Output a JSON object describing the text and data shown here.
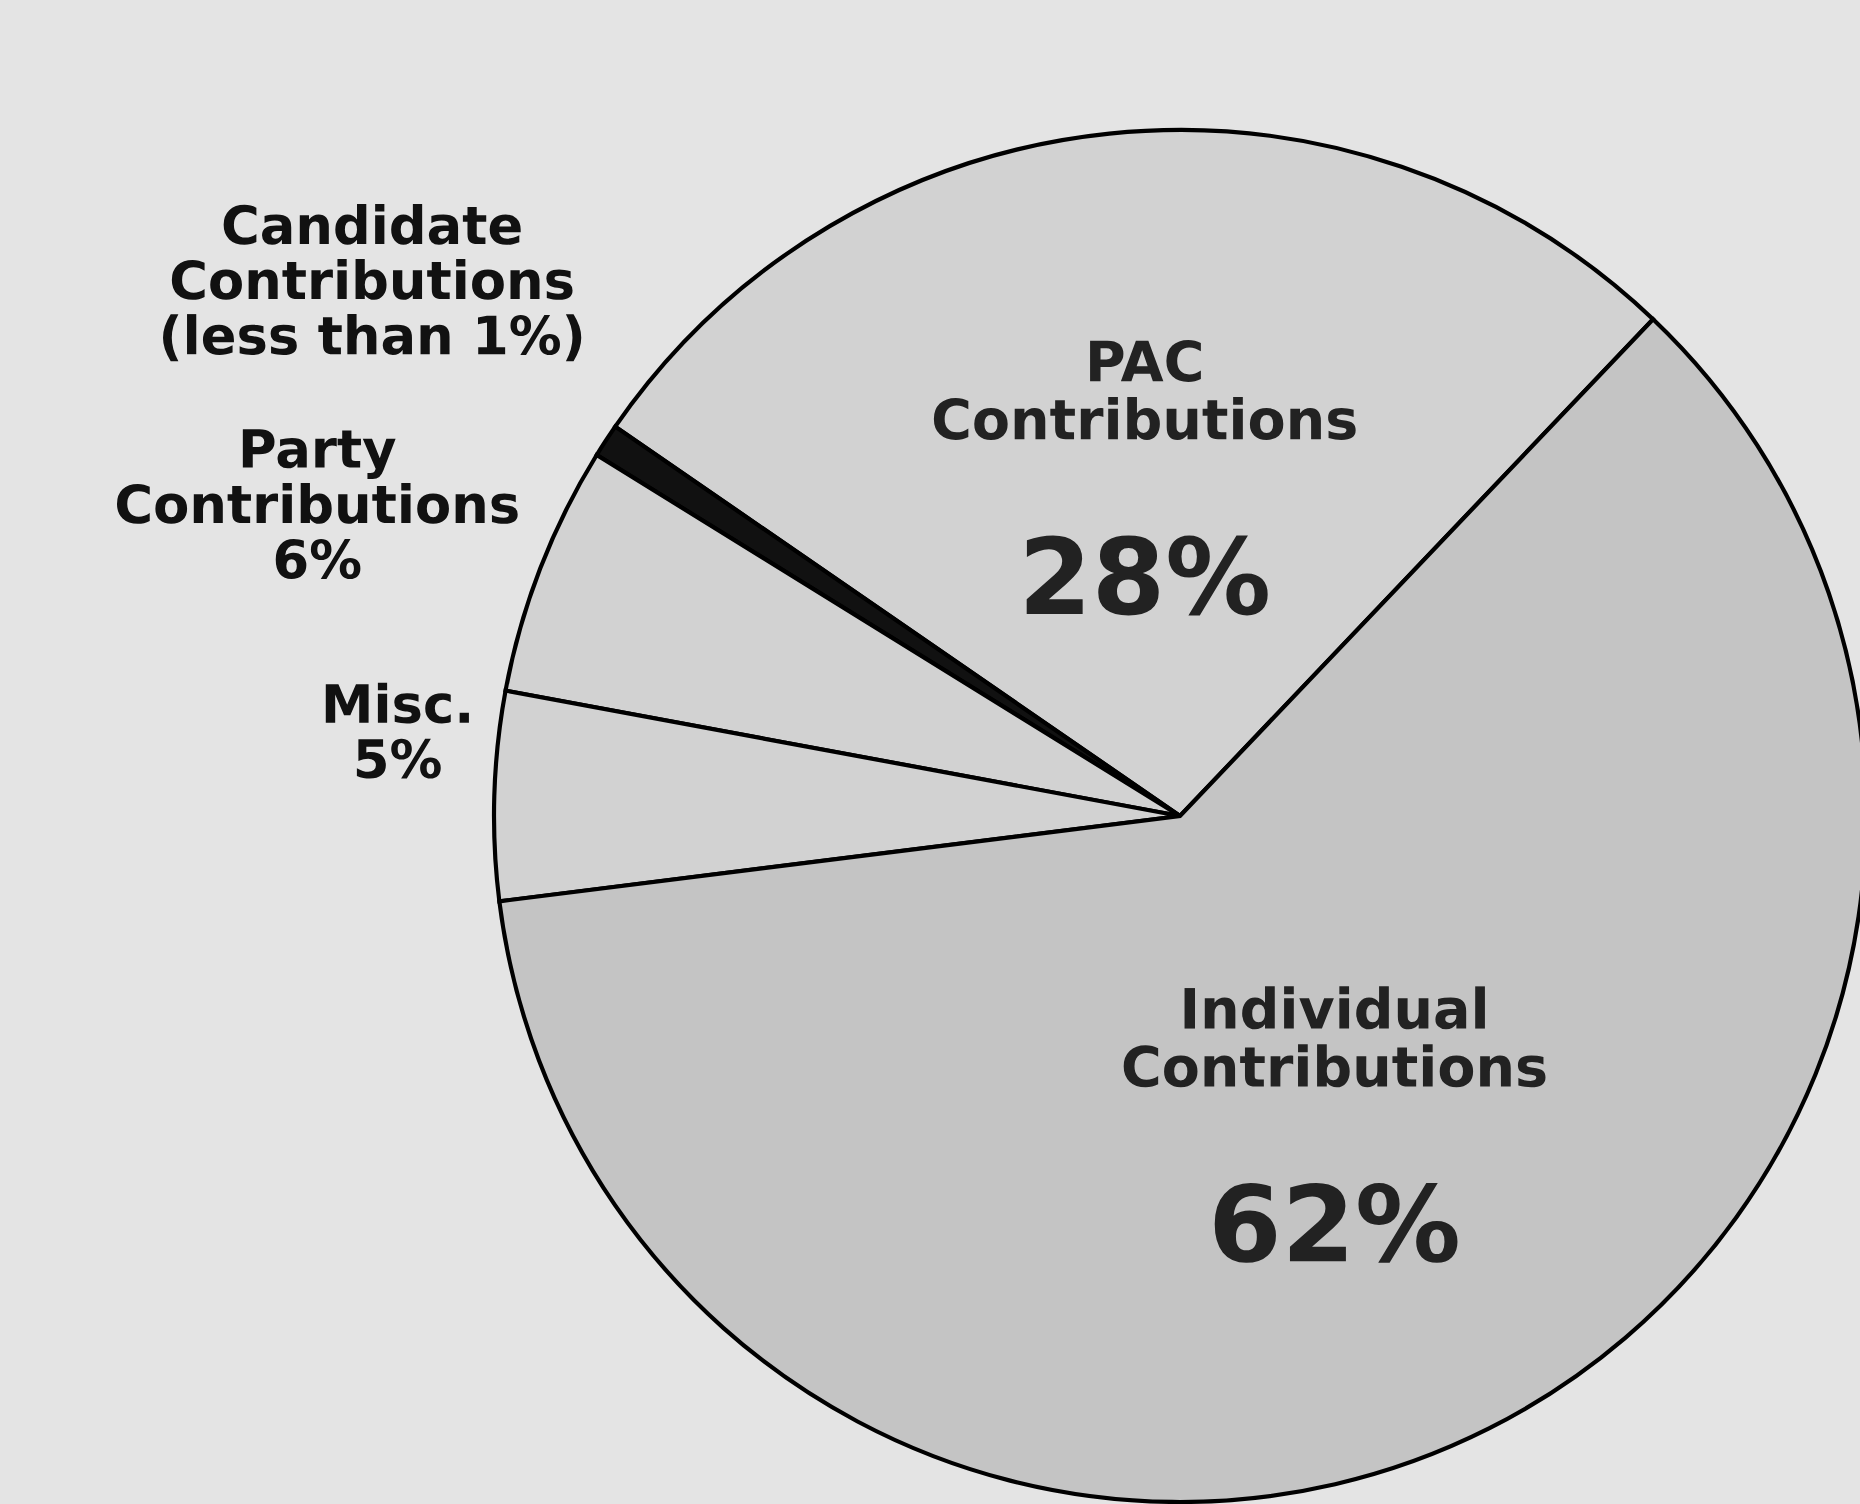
{
  "chart_data": {
    "type": "pie",
    "categories": [
      "PAC\nContributions",
      "Candidate\nContributions",
      "Party\nContributions",
      "Misc.",
      "Individual\nContributions"
    ],
    "values": [
      28,
      0.8,
      6,
      5,
      62
    ],
    "value_labels": [
      "28%",
      "(less than 1%)",
      "6%",
      "5%",
      "62%"
    ],
    "colors": [
      "#d2d2d2",
      "#111111",
      "#d2d2d2",
      "#d2d2d2",
      "#c4c4c4"
    ]
  }
}
